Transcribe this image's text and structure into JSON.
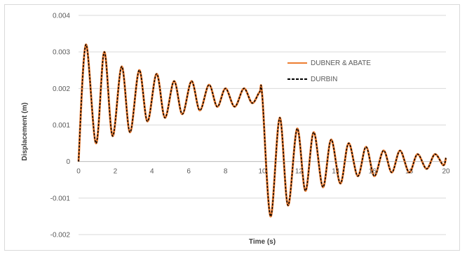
{
  "chart_data": {
    "type": "line",
    "title": "",
    "xlabel": "Time (s)",
    "ylabel": "Displacement  (m)",
    "xlim": [
      0,
      20
    ],
    "ylim": [
      -0.002,
      0.004
    ],
    "xticks": [
      "0",
      "2",
      "4",
      "6",
      "8",
      "10",
      "12",
      "14",
      "16",
      "18",
      "20"
    ],
    "yticks": [
      "0.004",
      "0.003",
      "0.002",
      "0.001",
      "0",
      "-0.001",
      "-0.002"
    ],
    "grid": "horizontal",
    "legend_position": "right",
    "series": [
      {
        "name": "DUBNER & ABATE",
        "color": "#ed7d31",
        "style": "solid",
        "x": [
          0.0,
          0.4,
          0.95,
          1.4,
          1.85,
          2.35,
          2.8,
          3.3,
          3.75,
          4.25,
          4.7,
          5.2,
          5.65,
          6.15,
          6.6,
          7.1,
          7.55,
          8.0,
          8.5,
          9.0,
          9.45,
          9.85,
          10.0,
          10.45,
          10.95,
          11.4,
          11.9,
          12.35,
          12.8,
          13.3,
          13.75,
          14.25,
          14.7,
          15.2,
          15.65,
          16.1,
          16.6,
          17.05,
          17.5,
          18.0,
          18.45,
          18.95,
          19.4,
          19.85,
          20.0
        ],
        "y": [
          0.0,
          0.0032,
          0.0005,
          0.003,
          0.0007,
          0.0026,
          0.0008,
          0.0025,
          0.0011,
          0.0024,
          0.0012,
          0.0022,
          0.0013,
          0.0022,
          0.0014,
          0.0021,
          0.0015,
          0.002,
          0.0015,
          0.002,
          0.0016,
          0.0019,
          0.0018,
          -0.0015,
          0.0012,
          -0.0012,
          0.0009,
          -0.0008,
          0.0008,
          -0.0007,
          0.0006,
          -0.0006,
          0.0005,
          -0.0004,
          0.0004,
          -0.0004,
          0.0003,
          -0.0003,
          0.0003,
          -0.0003,
          0.0002,
          -0.0002,
          0.0002,
          -0.0001,
          0.0001
        ]
      },
      {
        "name": "DURBIN",
        "color": "#000000",
        "style": "dashed",
        "x": [
          0.0,
          0.4,
          0.95,
          1.4,
          1.85,
          2.35,
          2.8,
          3.3,
          3.75,
          4.25,
          4.7,
          5.2,
          5.65,
          6.15,
          6.6,
          7.1,
          7.55,
          8.0,
          8.5,
          9.0,
          9.45,
          9.85,
          10.0,
          10.45,
          10.95,
          11.4,
          11.9,
          12.35,
          12.8,
          13.3,
          13.75,
          14.25,
          14.7,
          15.2,
          15.65,
          16.1,
          16.6,
          17.05,
          17.5,
          18.0,
          18.45,
          18.95,
          19.4,
          19.85,
          20.0
        ],
        "y": [
          0.0,
          0.0032,
          0.0005,
          0.003,
          0.0007,
          0.0026,
          0.0008,
          0.0025,
          0.0011,
          0.0024,
          0.0012,
          0.0022,
          0.0013,
          0.0022,
          0.0014,
          0.0021,
          0.0015,
          0.002,
          0.0015,
          0.002,
          0.0016,
          0.0019,
          0.0018,
          -0.0015,
          0.0012,
          -0.0012,
          0.0009,
          -0.0008,
          0.0008,
          -0.0007,
          0.0006,
          -0.0006,
          0.0005,
          -0.0004,
          0.0004,
          -0.0004,
          0.0003,
          -0.0003,
          0.0003,
          -0.0003,
          0.0002,
          -0.0002,
          0.0002,
          -0.0001,
          0.0001
        ]
      }
    ]
  }
}
